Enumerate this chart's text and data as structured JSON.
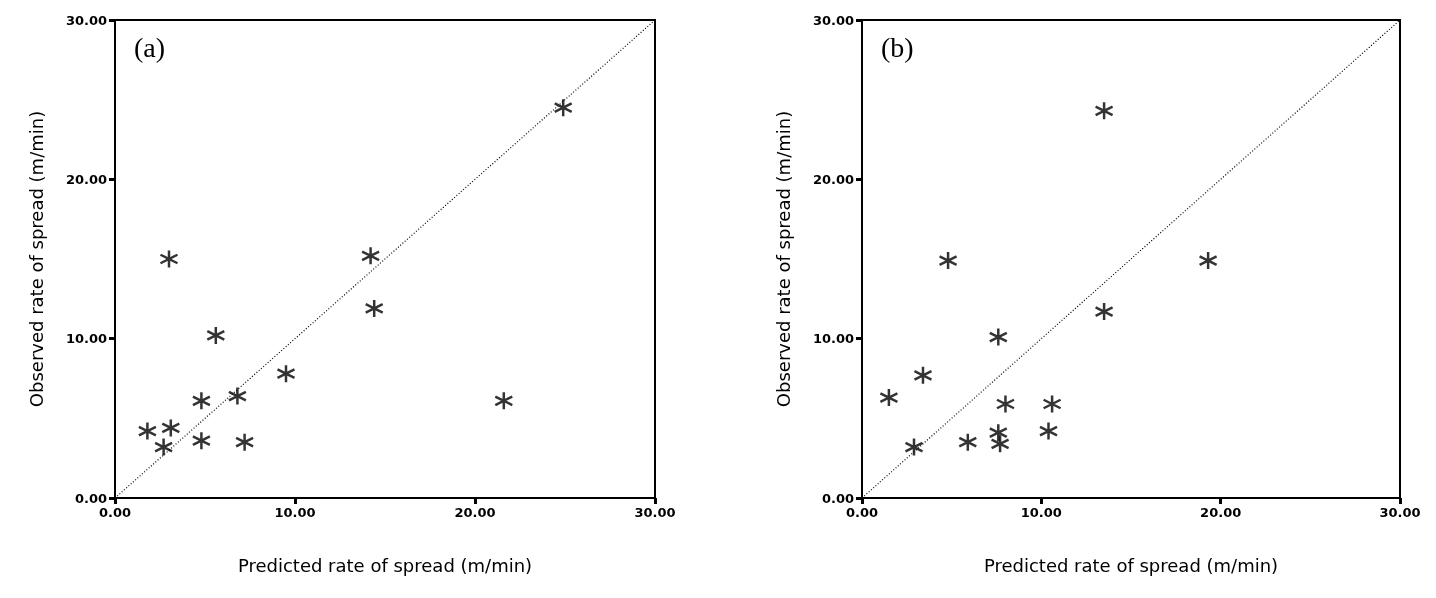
{
  "chart_data": [
    {
      "type": "scatter",
      "title": "(a)",
      "xlabel": "Predicted rate of spread (m/min)",
      "ylabel": "Observed rate of spread (m/min)",
      "xlim": [
        0,
        30
      ],
      "ylim": [
        0,
        30
      ],
      "xticks": [
        {
          "value": 0,
          "label": "0.00"
        },
        {
          "value": 10,
          "label": "10.00"
        },
        {
          "value": 20,
          "label": "20.00"
        },
        {
          "value": 30,
          "label": "30.00"
        }
      ],
      "yticks": [
        {
          "value": 0,
          "label": "0.00"
        },
        {
          "value": 10,
          "label": "10.00"
        },
        {
          "value": 20,
          "label": "20.00"
        },
        {
          "value": 30,
          "label": "30.00"
        }
      ],
      "grid": false,
      "marker": "cross",
      "series": [
        {
          "color": "#000000",
          "x": [
            1.8,
            2.7,
            3.1,
            3.0,
            4.8,
            4.8,
            5.6,
            6.8,
            7.2,
            9.5,
            14.2,
            14.4,
            21.6,
            24.9
          ],
          "values": [
            4.2,
            3.2,
            4.4,
            15.0,
            3.6,
            6.1,
            10.2,
            6.4,
            3.5,
            7.8,
            15.2,
            11.9,
            6.1,
            24.5
          ]
        },
        {
          "type": "line",
          "color": "#000000",
          "line_style": "dotted",
          "marker": "none",
          "x": [
            0,
            30
          ],
          "values": [
            0,
            30
          ]
        }
      ]
    },
    {
      "type": "scatter",
      "title": "(b)",
      "xlabel": "Predicted rate of spread (m/min)",
      "ylabel": "Observed rate of spread (m/min)",
      "xlim": [
        0,
        30
      ],
      "ylim": [
        0,
        30
      ],
      "xticks": [
        {
          "value": 0,
          "label": "0.00"
        },
        {
          "value": 10,
          "label": "10.00"
        },
        {
          "value": 20,
          "label": "20.00"
        },
        {
          "value": 30,
          "label": "30.00"
        }
      ],
      "yticks": [
        {
          "value": 0,
          "label": "0.00"
        },
        {
          "value": 10,
          "label": "10.00"
        },
        {
          "value": 20,
          "label": "20.00"
        },
        {
          "value": 30,
          "label": "30.00"
        }
      ],
      "grid": false,
      "marker": "cross",
      "series": [
        {
          "color": "#000000",
          "x": [
            1.5,
            2.9,
            3.4,
            4.8,
            5.9,
            7.6,
            7.6,
            7.7,
            8.0,
            10.4,
            10.6,
            13.5,
            13.5,
            19.3
          ],
          "values": [
            6.3,
            3.2,
            7.7,
            14.9,
            3.5,
            10.1,
            4.1,
            3.4,
            5.9,
            4.2,
            5.9,
            24.3,
            11.7,
            14.9
          ]
        },
        {
          "type": "line",
          "color": "#000000",
          "line_style": "dotted",
          "marker": "none",
          "x": [
            0,
            30
          ],
          "values": [
            0,
            30
          ]
        }
      ]
    }
  ]
}
